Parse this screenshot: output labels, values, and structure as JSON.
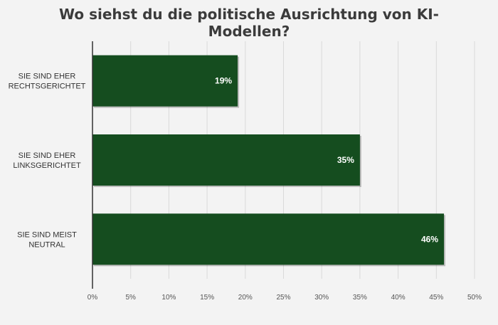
{
  "chart_data": {
    "type": "bar",
    "orientation": "horizontal",
    "title": [
      "Wo siehst du die politische Ausrichtung von KI-",
      "Modellen?"
    ],
    "categories": [
      [
        "SIE SIND EHER",
        "RECHTSGERICHTET"
      ],
      [
        "SIE SIND EHER",
        "LINKSGERICHTET"
      ],
      [
        "SIE SIND MEIST",
        "NEUTRAL"
      ]
    ],
    "values": [
      19,
      35,
      46
    ],
    "data_labels": [
      "19%",
      "35%",
      "46%"
    ],
    "x_ticks": [
      "0%",
      "5%",
      "10%",
      "15%",
      "20%",
      "25%",
      "30%",
      "35%",
      "40%",
      "45%",
      "50%"
    ],
    "xlim": [
      0,
      50
    ],
    "grid": "vertical",
    "legend": "none",
    "bar_color": "#154d1f",
    "background_color": "#f3f3f3"
  }
}
